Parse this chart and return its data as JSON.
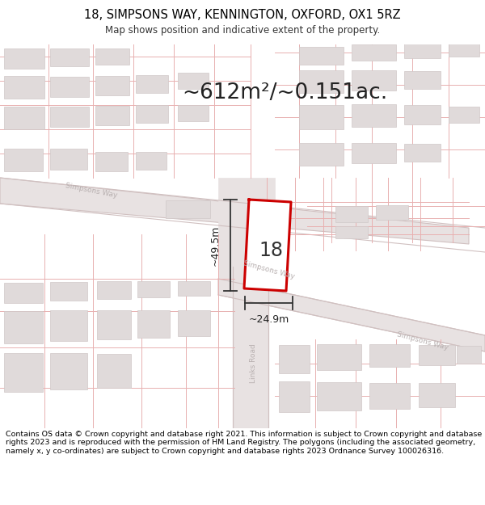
{
  "title_line1": "18, SIMPSONS WAY, KENNINGTON, OXFORD, OX1 5RZ",
  "title_line2": "Map shows position and indicative extent of the property.",
  "area_text": "~612m²/~0.151ac.",
  "label_18": "18",
  "dim_vertical": "~49.5m",
  "dim_horizontal": "~24.9m",
  "footer_text": "Contains OS data © Crown copyright and database right 2021. This information is subject to Crown copyright and database rights 2023 and is reproduced with the permission of HM Land Registry. The polygons (including the associated geometry, namely x, y co-ordinates) are subject to Crown copyright and database rights 2023 Ordnance Survey 100026316.",
  "map_bg": "#f8f4f4",
  "road_fill": "#e8e2e2",
  "bld_fill": "#e0dada",
  "bld_edge": "#d0c8c8",
  "cad_line": "#e8b0b0",
  "road_edge": "#d0c0c0",
  "plot_stroke": "#cc0000",
  "plot_fill": "#ffffff",
  "dim_color": "#222222",
  "street_label_color": "#b8b0b0",
  "title_color": "#000000",
  "footer_color": "#000000",
  "fig_width": 6.0,
  "fig_height": 6.25
}
